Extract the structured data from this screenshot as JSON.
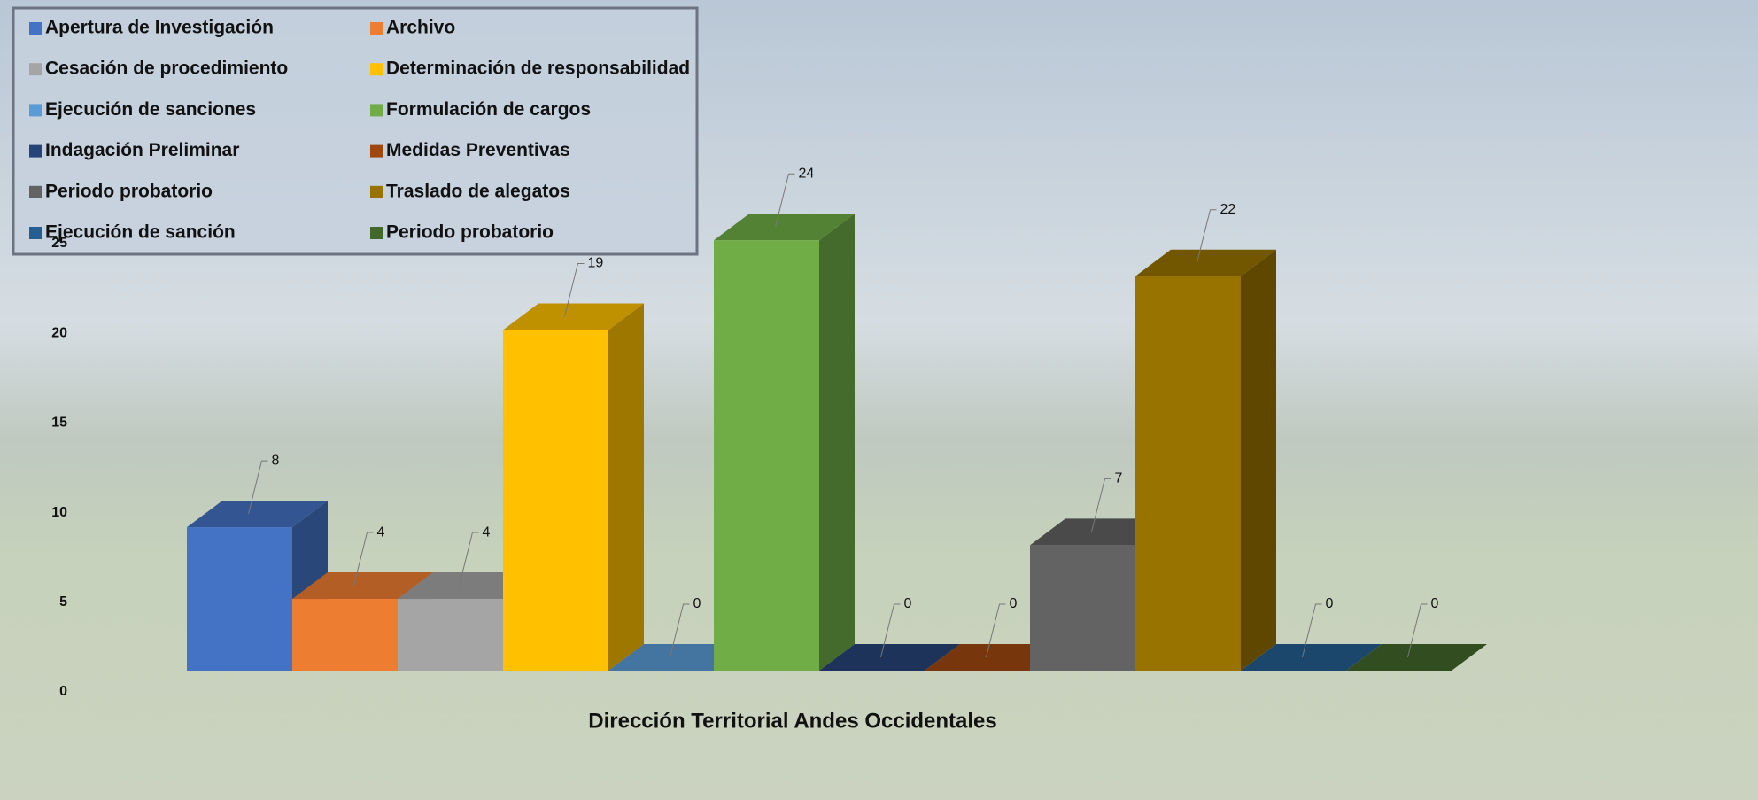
{
  "chart_data": {
    "type": "bar3d",
    "categories": [
      "Dirección Territorial Andes Occidentales"
    ],
    "series": [
      {
        "name": "Apertura de Investigación",
        "color": "#4472c4",
        "values": [
          8
        ]
      },
      {
        "name": "Archivo",
        "color": "#ed7d31",
        "values": [
          4
        ]
      },
      {
        "name": "Cesación de procedimiento",
        "color": "#a5a5a5",
        "values": [
          4
        ]
      },
      {
        "name": "Determinación de responsabilidad",
        "color": "#ffc000",
        "values": [
          19
        ]
      },
      {
        "name": "Ejecución de sanciones",
        "color": "#5b9bd5",
        "values": [
          0
        ]
      },
      {
        "name": "Formulación de cargos",
        "color": "#70ad47",
        "values": [
          24
        ]
      },
      {
        "name": "Indagación Preliminar",
        "color": "#264478",
        "values": [
          0
        ]
      },
      {
        "name": "Medidas Preventivas",
        "color": "#9e480e",
        "values": [
          0
        ]
      },
      {
        "name": "Periodo probatorio",
        "color": "#636363",
        "values": [
          7
        ]
      },
      {
        "name": "Traslado de alegatos",
        "color": "#997300",
        "values": [
          22
        ]
      },
      {
        "name": "Ejecución de sanción",
        "color": "#255e91",
        "values": [
          0
        ]
      },
      {
        "name": "Periodo probatorio",
        "color": "#43682b",
        "values": [
          0
        ]
      }
    ],
    "ylim": [
      0,
      25
    ],
    "yticks": [
      0,
      5,
      10,
      15,
      20,
      25
    ],
    "grid": false,
    "legend": "top-left"
  }
}
